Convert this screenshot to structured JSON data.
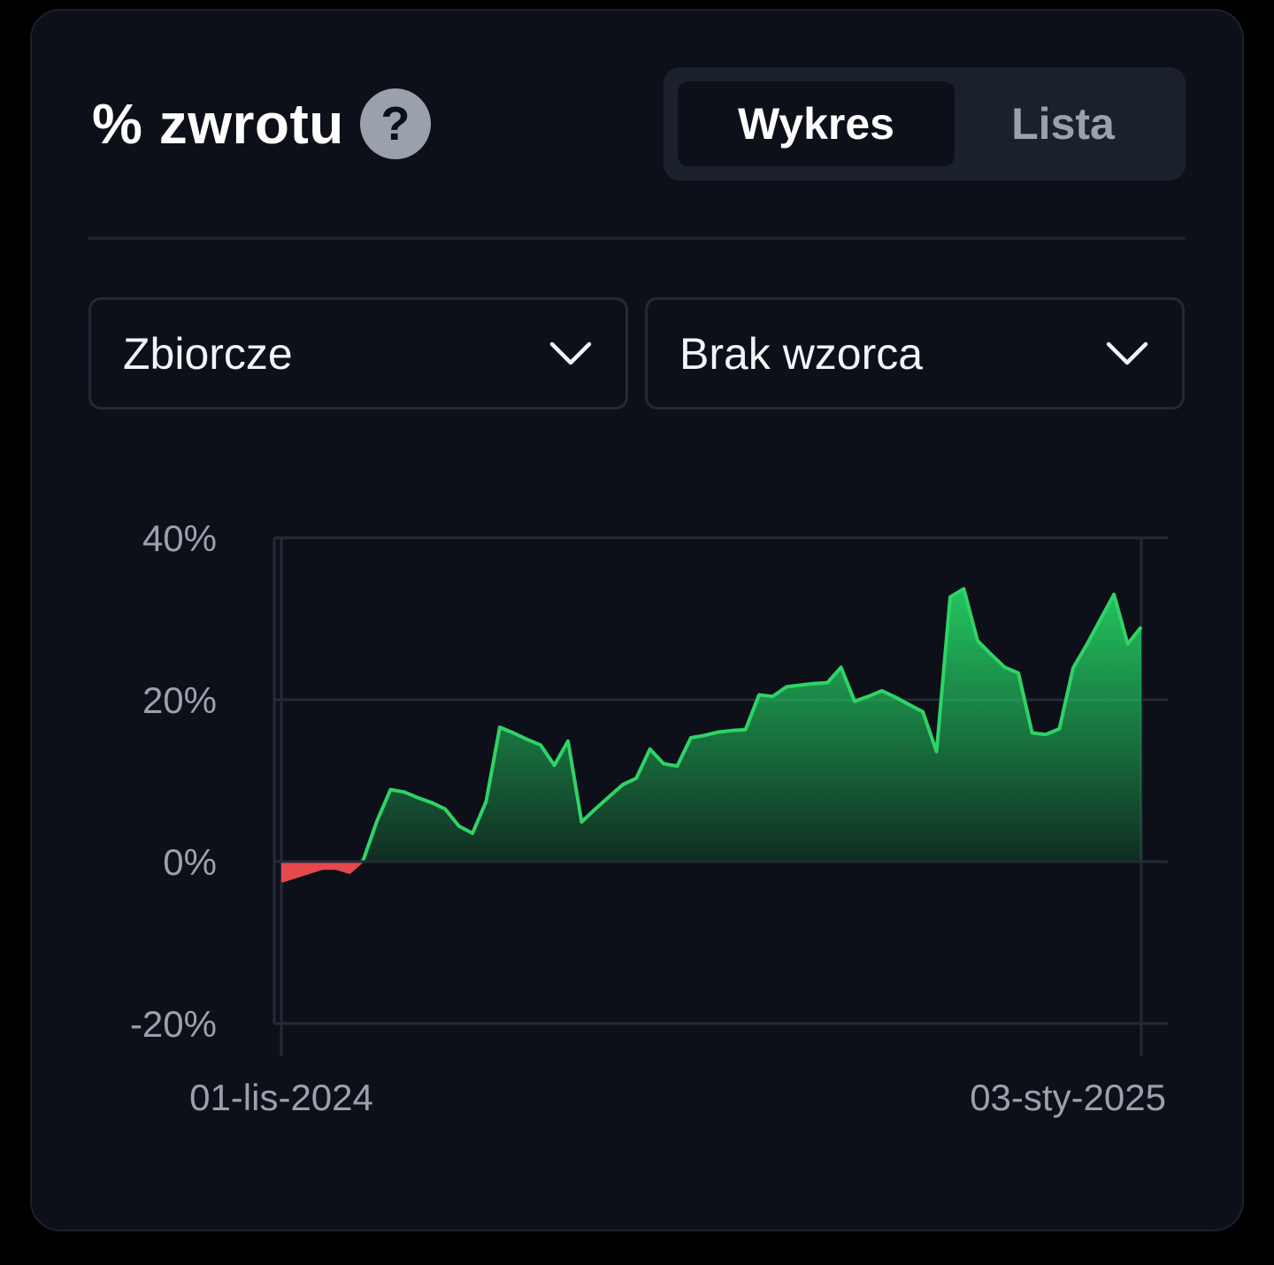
{
  "header": {
    "title": "% zwrotu",
    "help_icon": "question-icon",
    "help_glyph": "?"
  },
  "view_toggle": {
    "options": [
      "Wykres",
      "Lista"
    ],
    "active": "Wykres"
  },
  "filters": {
    "aggregation": {
      "selected": "Zbiorcze"
    },
    "benchmark": {
      "selected": "Brak wzorca"
    }
  },
  "colors": {
    "positive": "#22c55e",
    "negative": "#e5484d",
    "card": "#0d1018",
    "grid": "#232b38"
  },
  "chart_data": {
    "type": "area",
    "x_axis": {
      "start_label": "01-lis-2024",
      "end_label": "03-sty-2025",
      "start": 0,
      "end": 63
    },
    "y_axis": {
      "min": -20,
      "max": 40,
      "ticks": [
        40,
        20,
        0,
        -20
      ],
      "tick_labels": [
        "40%",
        "20%",
        "0%",
        "-20%"
      ],
      "grid": true
    },
    "series": [
      {
        "points": [
          [
            0,
            -2.4
          ],
          [
            3,
            -0.8
          ],
          [
            4,
            -0.8
          ],
          [
            5,
            -1.3
          ],
          [
            6,
            0.2
          ],
          [
            7,
            5.0
          ],
          [
            8,
            8.9
          ],
          [
            9,
            8.6
          ],
          [
            10,
            7.9
          ],
          [
            11,
            7.3
          ],
          [
            12,
            6.5
          ],
          [
            13,
            4.4
          ],
          [
            14,
            3.5
          ],
          [
            15,
            7.4
          ],
          [
            16,
            16.6
          ],
          [
            17,
            15.9
          ],
          [
            18,
            15.1
          ],
          [
            19,
            14.4
          ],
          [
            20,
            11.9
          ],
          [
            21,
            14.9
          ],
          [
            22,
            4.9
          ],
          [
            23,
            6.5
          ],
          [
            24,
            8.0
          ],
          [
            25,
            9.5
          ],
          [
            26,
            10.3
          ],
          [
            27,
            13.9
          ],
          [
            28,
            12.1
          ],
          [
            29,
            11.8
          ],
          [
            30,
            15.3
          ],
          [
            31,
            15.6
          ],
          [
            32,
            16.0
          ],
          [
            33,
            16.2
          ],
          [
            34,
            16.3
          ],
          [
            35,
            20.6
          ],
          [
            36,
            20.4
          ],
          [
            37,
            21.6
          ],
          [
            38,
            21.8
          ],
          [
            39,
            22.0
          ],
          [
            40,
            22.1
          ],
          [
            41,
            24.0
          ],
          [
            42,
            19.8
          ],
          [
            43,
            20.4
          ],
          [
            44,
            21.1
          ],
          [
            45,
            20.3
          ],
          [
            46,
            19.4
          ],
          [
            47,
            18.5
          ],
          [
            48,
            13.6
          ],
          [
            49,
            32.7
          ],
          [
            50,
            33.7
          ],
          [
            51,
            27.3
          ],
          [
            52,
            25.6
          ],
          [
            53,
            24.0
          ],
          [
            54,
            23.3
          ],
          [
            55,
            15.9
          ],
          [
            56,
            15.7
          ],
          [
            57,
            16.4
          ],
          [
            58,
            23.9
          ],
          [
            59,
            26.8
          ],
          [
            60,
            29.9
          ],
          [
            61,
            33.0
          ],
          [
            62,
            26.9
          ],
          [
            63,
            29.0
          ]
        ]
      }
    ]
  }
}
